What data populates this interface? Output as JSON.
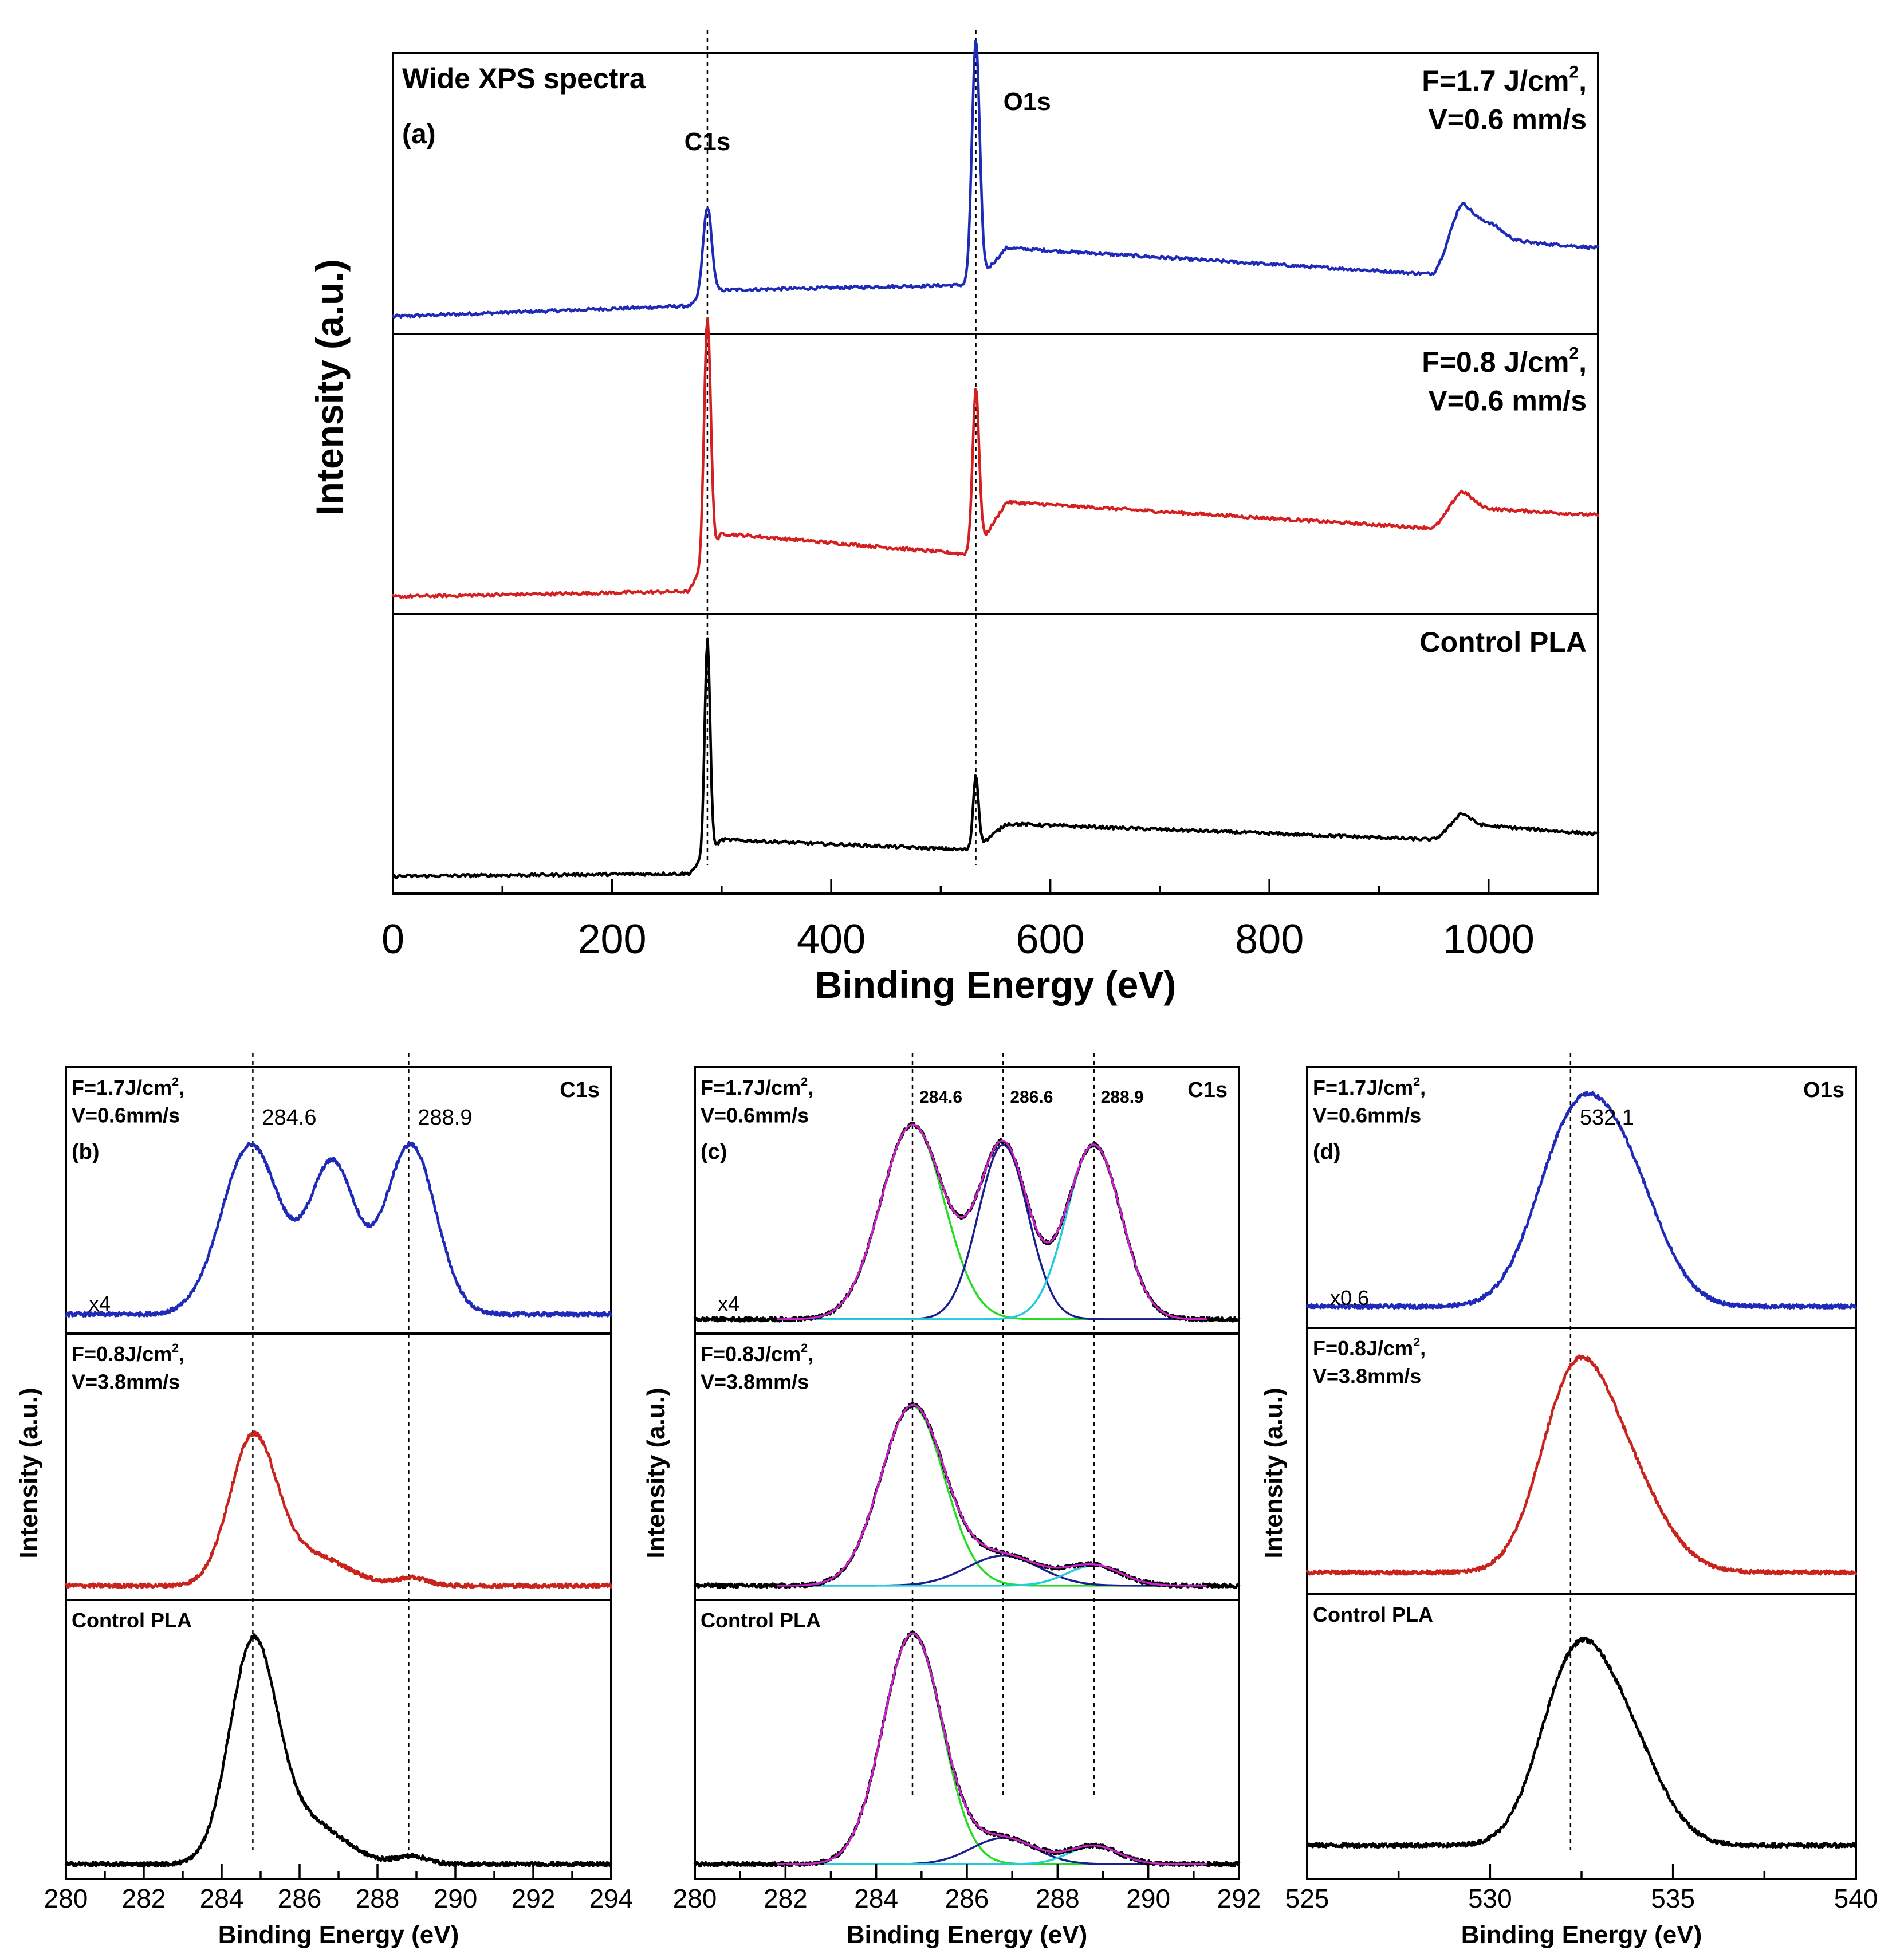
{
  "chart_data": [
    {
      "id": "a",
      "type": "line",
      "title": "Wide XPS spectra",
      "panel_label": "(a)",
      "xlabel": "Binding Energy (eV)",
      "ylabel": "Intensity (a.u.)",
      "xlim": [
        0,
        1100
      ],
      "xticks": [
        0,
        200,
        400,
        600,
        800,
        1000
      ],
      "peak_labels": [
        {
          "text": "C1s",
          "x": 287
        },
        {
          "text": "O1s",
          "x": 532
        }
      ],
      "guides_x": [
        287,
        532
      ],
      "series": [
        {
          "name": "F=1.7 J/cm², V=0.6 mm/s",
          "label_lines": [
            "F=1.7 J/cm",
            "2",
            ","
          ],
          "label_line2": "V=0.6 mm/s",
          "color": "#1f2bb8",
          "baseline": 0.04,
          "background": [
            [
              0,
              0.04
            ],
            [
              270,
              0.08
            ],
            [
              300,
              0.14
            ],
            [
              530,
              0.16
            ],
            [
              560,
              0.3
            ],
            [
              950,
              0.2
            ],
            [
              975,
              0.34
            ],
            [
              1100,
              0.3
            ]
          ],
          "peaks": [
            [
              287,
              0.34,
              4
            ],
            [
              532,
              0.92,
              3.5
            ],
            [
              975,
              0.12,
              10
            ],
            [
              1000,
              0.06,
              12
            ]
          ]
        },
        {
          "name": "F=0.8 J/cm², V=0.6 mm/s",
          "label_lines": [
            "F=0.8 J/cm",
            "2",
            ","
          ],
          "label_line2": "V=0.6 mm/s",
          "color": "#d42020",
          "baseline": 0.04,
          "background": [
            [
              0,
              0.04
            ],
            [
              270,
              0.06
            ],
            [
              300,
              0.28
            ],
            [
              530,
              0.2
            ],
            [
              560,
              0.4
            ],
            [
              950,
              0.3
            ],
            [
              975,
              0.38
            ],
            [
              1100,
              0.35
            ]
          ],
          "peaks": [
            [
              287,
              0.92,
              3
            ],
            [
              532,
              0.62,
              3
            ],
            [
              975,
              0.06,
              10
            ]
          ]
        },
        {
          "name": "Control PLA",
          "label_lines": [
            "Control PLA"
          ],
          "label_line2": "",
          "color": "#000000",
          "baseline": 0.04,
          "background": [
            [
              0,
              0.04
            ],
            [
              270,
              0.05
            ],
            [
              300,
              0.18
            ],
            [
              530,
              0.14
            ],
            [
              560,
              0.24
            ],
            [
              950,
              0.18
            ],
            [
              975,
              0.24
            ],
            [
              1100,
              0.2
            ]
          ],
          "peaks": [
            [
              287,
              0.82,
              2.5
            ],
            [
              532,
              0.28,
              2.5
            ],
            [
              975,
              0.04,
              8
            ]
          ]
        }
      ]
    },
    {
      "id": "b",
      "type": "line",
      "panel_label": "(b)",
      "region_label": "C1s",
      "xlabel": "Binding Energy (eV)",
      "ylabel": "Intensity (a.u.)",
      "xlim": [
        280,
        294
      ],
      "xticks": [
        280,
        282,
        284,
        286,
        288,
        290,
        292,
        294
      ],
      "guides_x": [
        284.8,
        288.8
      ],
      "annotations": [
        {
          "text": "284.6",
          "x": 284.8
        },
        {
          "text": "288.9",
          "x": 288.8
        }
      ],
      "scale_note": "x4",
      "series": [
        {
          "name": "F=1.7J/cm², V=0.6mm/s",
          "label_lines": [
            "F=1.7J/cm",
            "2",
            ","
          ],
          "label_line2": "V=0.6mm/s",
          "color": "#1f2bb8",
          "baseline": 0.05,
          "peaks": [
            [
              284.75,
              0.68,
              0.75
            ],
            [
              286.85,
              0.6,
              0.6
            ],
            [
              288.85,
              0.68,
              0.65
            ]
          ]
        },
        {
          "name": "F=0.8J/cm², V=3.8mm/s",
          "label_lines": [
            "F=0.8J/cm",
            "2",
            ","
          ],
          "label_line2": "V=3.8mm/s",
          "color": "#c9231e",
          "baseline": 0.03,
          "peaks": [
            [
              284.8,
              0.58,
              0.6
            ],
            [
              286.3,
              0.12,
              0.9
            ],
            [
              288.9,
              0.03,
              0.4
            ]
          ]
        },
        {
          "name": "Control PLA",
          "label_lines": [
            "Control PLA"
          ],
          "label_line2": "",
          "color": "#000000",
          "baseline": 0.03,
          "peaks": [
            [
              284.8,
              0.82,
              0.6
            ],
            [
              286.2,
              0.16,
              0.9
            ],
            [
              288.9,
              0.03,
              0.4
            ]
          ]
        }
      ]
    },
    {
      "id": "c",
      "type": "line",
      "panel_label": "(c)",
      "region_label": "C1s",
      "xlabel": "Binding Energy (eV)",
      "ylabel": "Intensity (a.u.)",
      "xlim": [
        280,
        292
      ],
      "xticks": [
        280,
        282,
        284,
        286,
        288,
        290,
        292
      ],
      "guides_x": [
        284.8,
        286.8,
        288.8
      ],
      "annotations": [
        {
          "text": "284.6",
          "x": 284.8
        },
        {
          "text": "286.6",
          "x": 286.8
        },
        {
          "text": "288.9",
          "x": 288.8
        }
      ],
      "scale_note": "x4",
      "component_colors": [
        "#22dd22",
        "#1a1f8f",
        "#22ccdd"
      ],
      "series": [
        {
          "name": "F=1.7J/cm², V=0.6mm/s",
          "label_lines": [
            "F=1.7J/cm",
            "2",
            ","
          ],
          "label_line2": "V=0.6mm/s",
          "color": "#000000",
          "fit_color": "#cc22cc",
          "baseline": 0.03,
          "peaks": [
            [
              284.8,
              0.78,
              0.7
            ],
            [
              286.8,
              0.7,
              0.55
            ],
            [
              288.8,
              0.7,
              0.6
            ]
          ]
        },
        {
          "name": "F=0.8J/cm², V=3.8mm/s",
          "label_lines": [
            "F=0.8J/cm",
            "2",
            ","
          ],
          "label_line2": "V=3.8mm/s",
          "color": "#000000",
          "fit_color": "#cc22cc",
          "baseline": 0.03,
          "peaks": [
            [
              284.8,
              0.72,
              0.7
            ],
            [
              286.8,
              0.12,
              0.8
            ],
            [
              288.8,
              0.08,
              0.6
            ]
          ]
        },
        {
          "name": "Control PLA",
          "label_lines": [
            "Control PLA"
          ],
          "label_line2": "",
          "color": "#000000",
          "fit_color": "#cc22cc",
          "baseline": 0.03,
          "peaks": [
            [
              284.8,
              0.88,
              0.65
            ],
            [
              286.8,
              0.1,
              0.7
            ],
            [
              288.8,
              0.07,
              0.55
            ]
          ]
        }
      ]
    },
    {
      "id": "d",
      "type": "line",
      "panel_label": "(d)",
      "region_label": "O1s",
      "xlabel": "Binding Energy (eV)",
      "ylabel": "Intensity (a.u.)",
      "xlim": [
        525,
        540
      ],
      "xticks": [
        525,
        530,
        535,
        540
      ],
      "guides_x": [
        532.2
      ],
      "annotations": [
        {
          "text": "532.1",
          "x": 532.2
        }
      ],
      "scale_note": "x0.6",
      "series": [
        {
          "name": "F=1.7J/cm², V=0.6mm/s",
          "label_lines": [
            "F=1.7J/cm",
            "2",
            ","
          ],
          "label_line2": "V=0.6mm/s",
          "color": "#1f2bb8",
          "baseline": 0.06,
          "peaks": [
            [
              532.2,
              0.66,
              1.0
            ],
            [
              533.7,
              0.48,
              1.0
            ]
          ]
        },
        {
          "name": "F=0.8J/cm², V=3.8mm/s",
          "label_lines": [
            "F=0.8J/cm",
            "2",
            ","
          ],
          "label_line2": "V=3.8mm/s",
          "color": "#c9231e",
          "baseline": 0.06,
          "peaks": [
            [
              532.2,
              0.62,
              0.9
            ],
            [
              533.5,
              0.42,
              1.1
            ]
          ]
        },
        {
          "name": "Control PLA",
          "label_lines": [
            "Control PLA"
          ],
          "label_line2": "",
          "color": "#000000",
          "baseline": 0.1,
          "peaks": [
            [
              532.2,
              0.58,
              0.9
            ],
            [
              533.6,
              0.4,
              1.0
            ]
          ]
        }
      ]
    }
  ]
}
